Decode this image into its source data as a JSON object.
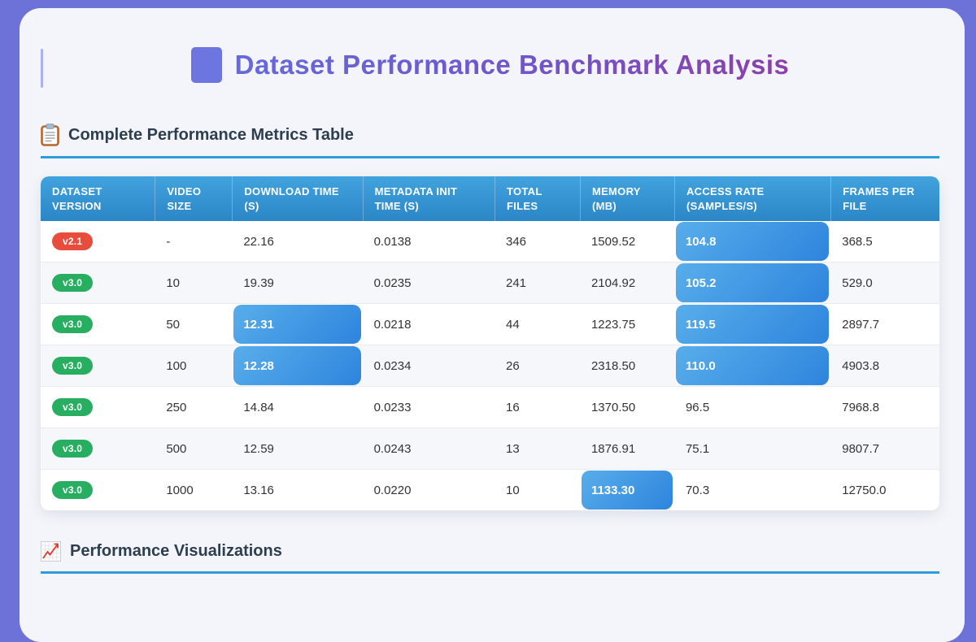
{
  "header": {
    "title": "Dataset Performance Benchmark Analysis"
  },
  "sections": {
    "metrics_table": {
      "heading": "Complete Performance Metrics Table",
      "icon": "clipboard-icon"
    },
    "visualizations": {
      "heading": "Performance Visualizations",
      "icon": "chart-icon"
    }
  },
  "table": {
    "columns": [
      "DATASET VERSION",
      "VIDEO SIZE",
      "DOWNLOAD TIME (S)",
      "METADATA INIT TIME (S)",
      "TOTAL FILES",
      "MEMORY (MB)",
      "ACCESS RATE (SAMPLES/S)",
      "FRAMES PER FILE"
    ],
    "rows": [
      {
        "version": {
          "label": "v2.1",
          "color": "#e74c3c"
        },
        "cells": [
          {
            "v": "-"
          },
          {
            "v": "22.16"
          },
          {
            "v": "0.0138"
          },
          {
            "v": "346"
          },
          {
            "v": "1509.52"
          },
          {
            "v": "104.8",
            "hl": true
          },
          {
            "v": "368.5"
          }
        ]
      },
      {
        "version": {
          "label": "v3.0",
          "color": "#27ae60"
        },
        "cells": [
          {
            "v": "10"
          },
          {
            "v": "19.39"
          },
          {
            "v": "0.0235"
          },
          {
            "v": "241"
          },
          {
            "v": "2104.92"
          },
          {
            "v": "105.2",
            "hl": true
          },
          {
            "v": "529.0"
          }
        ]
      },
      {
        "version": {
          "label": "v3.0",
          "color": "#27ae60"
        },
        "cells": [
          {
            "v": "50"
          },
          {
            "v": "12.31",
            "hl": true
          },
          {
            "v": "0.0218"
          },
          {
            "v": "44"
          },
          {
            "v": "1223.75"
          },
          {
            "v": "119.5",
            "hl": true
          },
          {
            "v": "2897.7"
          }
        ]
      },
      {
        "version": {
          "label": "v3.0",
          "color": "#27ae60"
        },
        "cells": [
          {
            "v": "100"
          },
          {
            "v": "12.28",
            "hl": true
          },
          {
            "v": "0.0234"
          },
          {
            "v": "26"
          },
          {
            "v": "2318.50"
          },
          {
            "v": "110.0",
            "hl": true
          },
          {
            "v": "4903.8"
          }
        ]
      },
      {
        "version": {
          "label": "v3.0",
          "color": "#27ae60"
        },
        "cells": [
          {
            "v": "250"
          },
          {
            "v": "14.84"
          },
          {
            "v": "0.0233"
          },
          {
            "v": "16"
          },
          {
            "v": "1370.50"
          },
          {
            "v": "96.5"
          },
          {
            "v": "7968.8"
          }
        ]
      },
      {
        "version": {
          "label": "v3.0",
          "color": "#27ae60"
        },
        "cells": [
          {
            "v": "500"
          },
          {
            "v": "12.59"
          },
          {
            "v": "0.0243"
          },
          {
            "v": "13"
          },
          {
            "v": "1876.91"
          },
          {
            "v": "75.1"
          },
          {
            "v": "9807.7"
          }
        ]
      },
      {
        "version": {
          "label": "v3.0",
          "color": "#27ae60"
        },
        "cells": [
          {
            "v": "1000"
          },
          {
            "v": "13.16"
          },
          {
            "v": "0.0220"
          },
          {
            "v": "10"
          },
          {
            "v": "1133.30",
            "hl": true
          },
          {
            "v": "70.3"
          },
          {
            "v": "12750.0"
          }
        ]
      }
    ]
  },
  "colors": {
    "page_background": "#6d72d9",
    "card_background": "#f4f5fa",
    "title_gradient_start": "#6569dd",
    "title_gradient_end": "#8c3fa9",
    "title_square": "#6c75e0",
    "section_heading_text": "#2c3e50",
    "section_underline": "#2d9cdb",
    "header_blue_top": "#41a3de",
    "header_blue_bottom": "#2b86c6",
    "highlight_gradient_start": "#58aeea",
    "highlight_gradient_end": "#2e84dd",
    "badge_red": "#e74c3c",
    "badge_green": "#27ae60"
  }
}
